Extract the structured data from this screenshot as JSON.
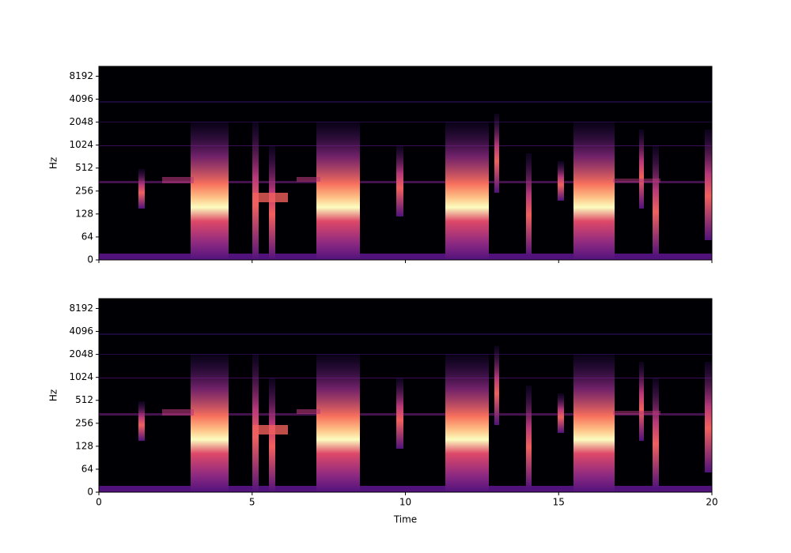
{
  "chart_data": [
    {
      "type": "spectrogram",
      "ylabel": "Hz",
      "xlim": [
        0,
        20
      ],
      "xticks": [
        0,
        5,
        10,
        15,
        20
      ],
      "show_xtick_labels": false,
      "ylim": [
        0,
        11025
      ],
      "yscale": "symlog",
      "linthresh": 64,
      "yticks": [
        0,
        64,
        128,
        256,
        512,
        1024,
        2048,
        4096,
        8192
      ],
      "colormap": "magma"
    },
    {
      "type": "spectrogram",
      "ylabel": "Hz",
      "xlabel": "Time",
      "xlim": [
        0,
        20
      ],
      "xticks": [
        0,
        5,
        10,
        15,
        20
      ],
      "show_xtick_labels": true,
      "ylim": [
        0,
        11025
      ],
      "yscale": "symlog",
      "linthresh": 64,
      "yticks": [
        0,
        64,
        128,
        256,
        512,
        1024,
        2048,
        4096,
        8192
      ],
      "colormap": "magma"
    }
  ]
}
